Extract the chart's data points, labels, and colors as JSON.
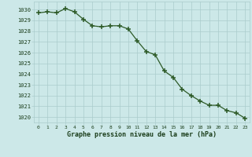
{
  "x": [
    0,
    1,
    2,
    3,
    4,
    5,
    6,
    7,
    8,
    9,
    10,
    11,
    12,
    13,
    14,
    15,
    16,
    17,
    18,
    19,
    20,
    21,
    22,
    23
  ],
  "y": [
    1029.7,
    1029.8,
    1029.7,
    1030.1,
    1029.8,
    1029.1,
    1028.5,
    1028.4,
    1028.5,
    1028.5,
    1028.2,
    1027.1,
    1026.1,
    1025.8,
    1024.3,
    1023.7,
    1022.6,
    1022.0,
    1021.5,
    1021.1,
    1021.1,
    1020.6,
    1020.4,
    1019.9
  ],
  "line_color": "#2d5a27",
  "marker": "+",
  "marker_color": "#2d5a27",
  "bg_color": "#cce8e8",
  "grid_color": "#aacccc",
  "xlabel": "Graphe pression niveau de la mer (hPa)",
  "xlabel_color": "#1a3d1a",
  "tick_color": "#1a3d1a",
  "ylim_min": 1019.5,
  "ylim_max": 1030.75,
  "xlim_min": -0.5,
  "xlim_max": 23.5,
  "ytick_min": 1020,
  "ytick_max": 1030
}
